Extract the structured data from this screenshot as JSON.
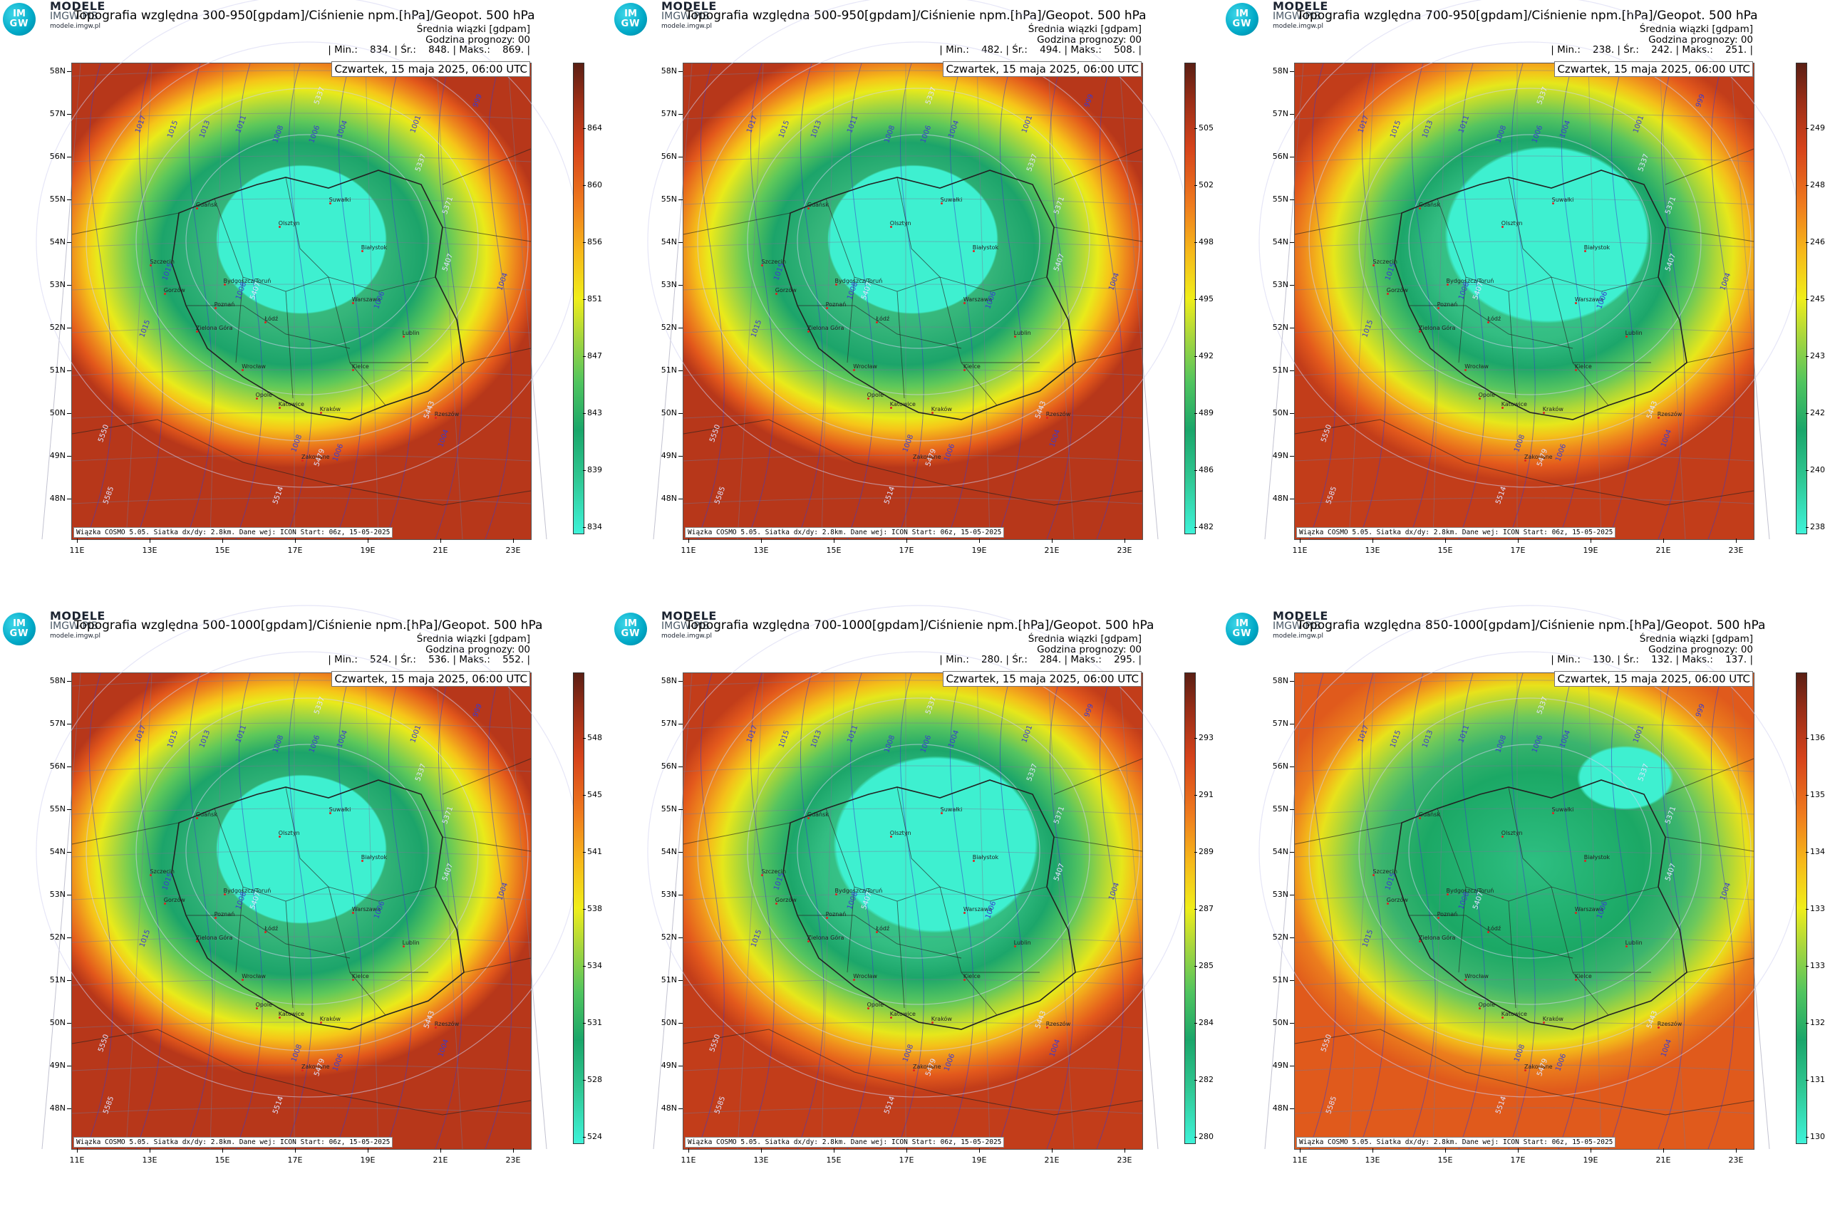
{
  "common": {
    "brand_line1": "MODELE",
    "brand_line2": "IMGW-PIB",
    "brand_line3": "modele.imgw.pl",
    "logo_top": "IM",
    "logo_bottom": "GW",
    "info_line1": "Średnia wiązki [gdpam]",
    "info_line2": "Godzina prognozy: 00",
    "date": "Czwartek, 15 maja 2025, 06:00 UTC",
    "credit": "Wiązka COSMO 5.05. Siatka dx/dy: 2.8km. Dane wej: ICON Start: 06z, 15-05-2025",
    "lat_labels": [
      "58N",
      "57N",
      "56N",
      "55N",
      "54N",
      "53N",
      "52N",
      "51N",
      "50N",
      "49N",
      "48N"
    ],
    "lon_labels": [
      "11E",
      "13E",
      "15E",
      "17E",
      "19E",
      "21E",
      "23E"
    ],
    "cities": [
      {
        "name": "Gdańsk"
      },
      {
        "name": "Suwałki"
      },
      {
        "name": "Olsztyn"
      },
      {
        "name": "Szczecin"
      },
      {
        "name": "Białystok"
      },
      {
        "name": "Bydgoszcz/Toruń"
      },
      {
        "name": "Gorzów"
      },
      {
        "name": "Poznań"
      },
      {
        "name": "Warszawa"
      },
      {
        "name": "Zielona Góra"
      },
      {
        "name": "Łódź"
      },
      {
        "name": "Lublin"
      },
      {
        "name": "Kielce"
      },
      {
        "name": "Wrocław"
      },
      {
        "name": "Opole"
      },
      {
        "name": "Katowice"
      },
      {
        "name": "Kraków"
      },
      {
        "name": "Rzeszów"
      },
      {
        "name": "Zakopane"
      }
    ],
    "isobar_labels": [
      "1017",
      "1015",
      "1013",
      "1011",
      "1008",
      "1006",
      "1004",
      "1001",
      "999",
      "1015",
      "1015",
      "1008",
      "1006",
      "1004",
      "1004",
      "1008",
      "1006"
    ],
    "geopot_labels": [
      "5337",
      "5371",
      "5407",
      "5443",
      "5479",
      "5514",
      "5550",
      "5585",
      "5337",
      "5407"
    ]
  },
  "panels": [
    {
      "title": "Topografia względna 300-950[gpdam]/Ciśnienie npm.[hPa]/Geopot. 500 hPa",
      "stats": "| Min.:    834. | Śr.:    848. | Maks.:    869. |",
      "colorbar_labels": [
        "864",
        "860",
        "856",
        "851",
        "847",
        "843",
        "839",
        "834"
      ],
      "palette": "warm"
    },
    {
      "title": "Topografia względna 500-950[gpdam]/Ciśnienie npm.[hPa]/Geopot. 500 hPa",
      "stats": "| Min.:    482. | Śr.:    494. | Maks.:    508. |",
      "colorbar_labels": [
        "505",
        "502",
        "498",
        "495",
        "492",
        "489",
        "486",
        "482"
      ],
      "palette": "warm"
    },
    {
      "title": "Topografia względna 700-950[gpdam]/Ciśnienie npm.[hPa]/Geopot. 500 hPa",
      "stats": "| Min.:    238. | Śr.:    242. | Maks.:    251. |",
      "colorbar_labels": [
        "249",
        "248",
        "246",
        "245",
        "243",
        "242",
        "240",
        "238"
      ],
      "palette": "green"
    },
    {
      "title": "Topografia względna 500-1000[gpdam]/Ciśnienie npm.[hPa]/Geopot. 500 hPa",
      "stats": "| Min.:    524. | Śr.:    536. | Maks.:    552. |",
      "colorbar_labels": [
        "548",
        "545",
        "541",
        "538",
        "534",
        "531",
        "528",
        "524"
      ],
      "palette": "warm"
    },
    {
      "title": "Topografia względna 700-1000[gpdam]/Ciśnienie npm.[hPa]/Geopot. 500 hPa",
      "stats": "| Min.:    280. | Śr.:    284. | Maks.:    295. |",
      "colorbar_labels": [
        "293",
        "291",
        "289",
        "287",
        "285",
        "284",
        "282",
        "280"
      ],
      "palette": "green"
    },
    {
      "title": "Topografia względna 850-1000[gpdam]/Ciśnienie npm.[hPa]/Geopot. 500 hPa",
      "stats": "| Min.:    130. | Śr.:    132. | Maks.:    137. |",
      "colorbar_labels": [
        "136",
        "135",
        "134",
        "133",
        "133",
        "132",
        "131",
        "130"
      ],
      "palette": "green"
    }
  ]
}
